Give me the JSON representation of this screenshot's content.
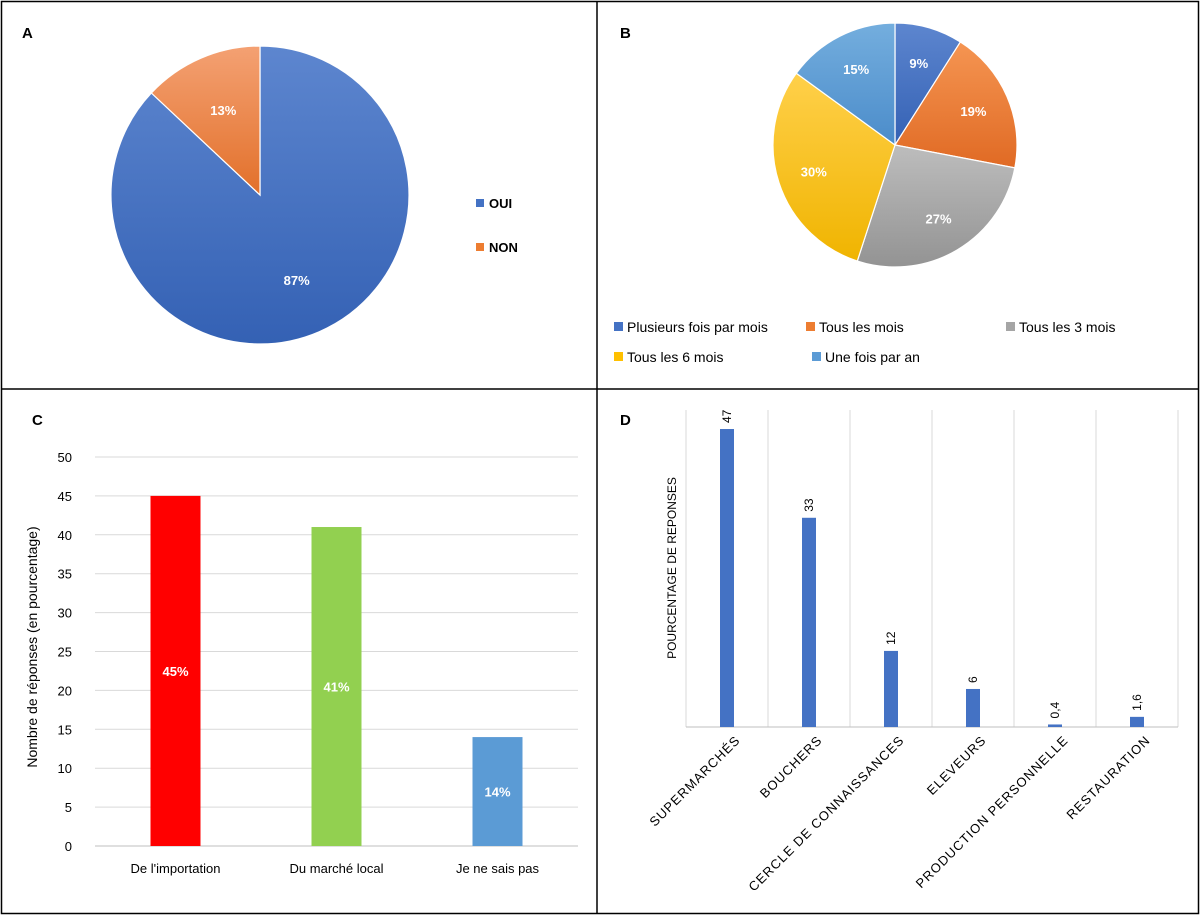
{
  "chart_data": [
    {
      "panel": "A",
      "type": "pie",
      "labels": [
        "OUI",
        "NON"
      ],
      "values": [
        87,
        13
      ],
      "data_labels": [
        "87%",
        "13%"
      ],
      "colors": [
        "#4472C4",
        "#ED7D31"
      ],
      "legend": "right"
    },
    {
      "panel": "B",
      "type": "pie",
      "labels": [
        "Plusieurs fois par mois",
        "Tous les mois",
        "Tous les 3 mois",
        "Tous les 6 mois",
        "Une fois par an"
      ],
      "values": [
        9,
        19,
        27,
        30,
        15
      ],
      "data_labels": [
        "9%",
        "19%",
        "27%",
        "30%",
        "15%"
      ],
      "colors": [
        "#4472C4",
        "#ED7D31",
        "#A5A5A5",
        "#FFC000",
        "#5B9BD5"
      ],
      "legend": "bottom"
    },
    {
      "panel": "C",
      "type": "bar",
      "categories": [
        "De l'importation",
        "Du marché local",
        "Je ne sais pas"
      ],
      "values": [
        45,
        41,
        14
      ],
      "data_labels": [
        "45%",
        "41%",
        "14%"
      ],
      "colors": [
        "#FF0000",
        "#92D050",
        "#5B9BD5"
      ],
      "ylabel": "Nombre de réponses (en pourcentage)",
      "ylim": [
        0,
        50
      ],
      "yticks": [
        "0",
        "5",
        "10",
        "15",
        "20",
        "25",
        "30",
        "35",
        "40",
        "45",
        "50"
      ],
      "grid": true
    },
    {
      "panel": "D",
      "type": "bar",
      "categories": [
        "SUPERMARCHÉS",
        "BOUCHERS",
        "CERCLE DE CONNAISSANCES",
        "ELEVEURS",
        "PRODUCTION PERSONNELLE",
        "RESTAURATION"
      ],
      "values": [
        47,
        33,
        12,
        6,
        0.4,
        1.6
      ],
      "data_labels": [
        "47",
        "33",
        "12",
        "6",
        "0,4",
        "1,6"
      ],
      "color": "#4472C4",
      "ylabel": "POURCENTAGE DE REPONSES",
      "ylim": [
        0,
        50
      ],
      "grid": true
    }
  ]
}
